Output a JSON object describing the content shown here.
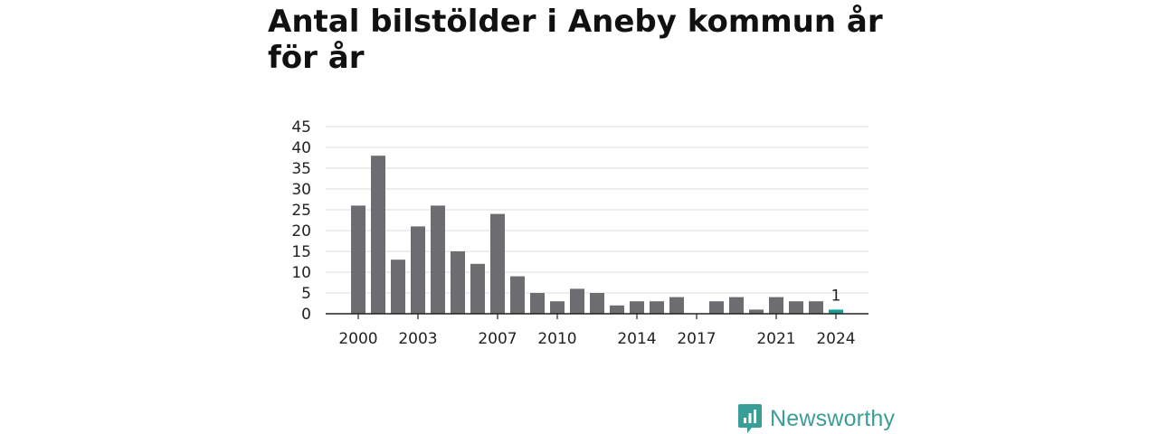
{
  "title": "Antal bilstölder i Aneby kommun år för år",
  "brand": {
    "name": "Newsworthy",
    "icon": "newsworthy-logo-icon",
    "color": "#3a9e98"
  },
  "chart_data": {
    "type": "bar",
    "title": "Antal bilstölder i Aneby kommun år för år",
    "xlabel": "",
    "ylabel": "",
    "x": [
      2000,
      2001,
      2002,
      2003,
      2004,
      2005,
      2006,
      2007,
      2008,
      2009,
      2010,
      2011,
      2012,
      2013,
      2014,
      2015,
      2016,
      2017,
      2018,
      2019,
      2020,
      2021,
      2022,
      2023,
      2024
    ],
    "values": [
      26,
      38,
      13,
      21,
      26,
      15,
      12,
      24,
      9,
      5,
      3,
      6,
      5,
      2,
      3,
      3,
      4,
      0,
      3,
      4,
      1,
      4,
      3,
      3,
      1
    ],
    "x_tick_labels": [
      "2000",
      "2003",
      "2007",
      "2010",
      "2014",
      "2017",
      "2021",
      "2024"
    ],
    "y_ticks": [
      0,
      5,
      10,
      15,
      20,
      25,
      30,
      35,
      40,
      45
    ],
    "ylim": [
      0,
      45
    ],
    "grid": true,
    "legend": "none",
    "bar_color": "#6d6c71",
    "highlight_color": "#1a9e94",
    "highlight_year": 2024,
    "data_labels": [
      {
        "x": 2024,
        "text": "1"
      }
    ]
  }
}
